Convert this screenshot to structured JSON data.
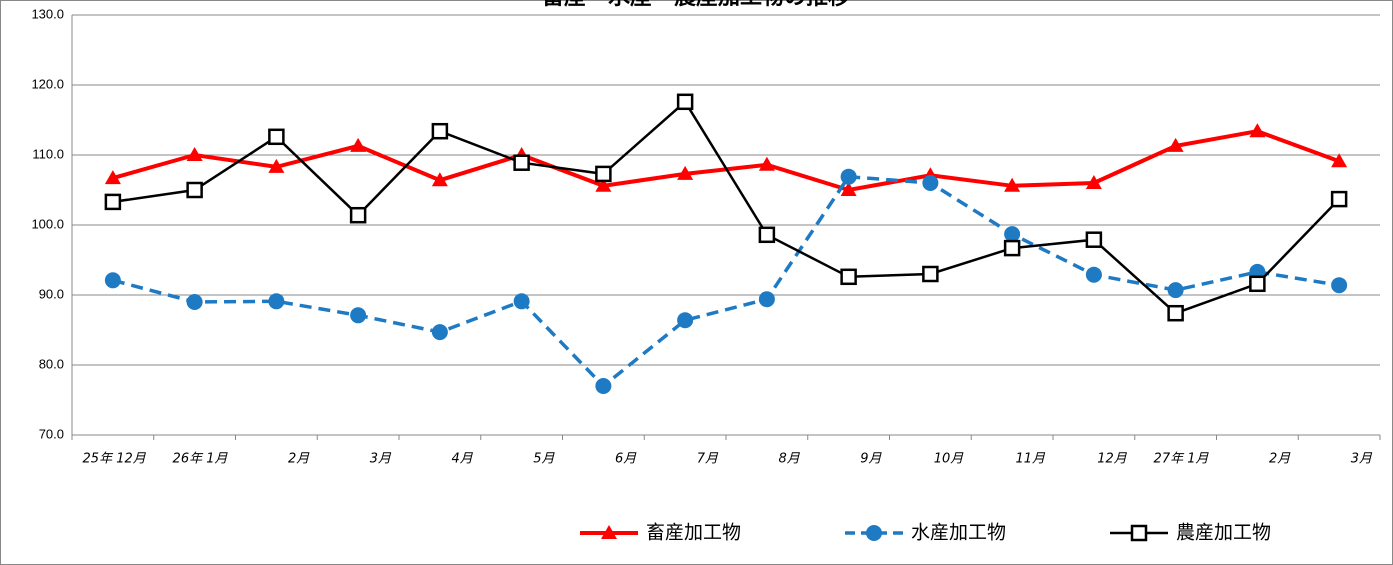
{
  "chart_data": {
    "type": "line",
    "title": "畜産・水産・農産加工物の推移",
    "categories": [
      "25年 12月",
      "26年 1月",
      "2月",
      "3月",
      "4月",
      "5月",
      "6月",
      "7月",
      "8月",
      "9月",
      "10月",
      "11月",
      "12月",
      "27年 1月",
      "2月",
      "3月"
    ],
    "series": [
      {
        "name": "畜産加工物",
        "color": "#ff0000",
        "marker": "triangle",
        "dash": false,
        "values": [
          106.7,
          110.0,
          108.3,
          111.3,
          106.4,
          110.0,
          105.6,
          107.3,
          108.6,
          105.0,
          107.1,
          105.6,
          106.0,
          111.3,
          113.4,
          109.1
        ]
      },
      {
        "name": "水産加工物",
        "color": "#1f7ac4",
        "marker": "circle",
        "dash": true,
        "values": [
          92.1,
          89.0,
          89.1,
          87.1,
          84.7,
          89.1,
          77.0,
          86.4,
          89.4,
          106.9,
          106.0,
          98.7,
          92.9,
          90.7,
          93.3,
          91.4
        ]
      },
      {
        "name": "農産加工物",
        "color": "#000000",
        "marker": "square",
        "dash": false,
        "values": [
          103.3,
          105.0,
          112.6,
          101.4,
          113.4,
          108.9,
          107.3,
          117.6,
          98.6,
          92.6,
          93.0,
          96.7,
          97.9,
          87.4,
          91.6,
          103.7
        ]
      }
    ],
    "ylim": [
      70,
      130
    ],
    "yticks": [
      {
        "value": 70,
        "label": "70.0"
      },
      {
        "value": 80,
        "label": "80.0"
      },
      {
        "value": 90,
        "label": "90.0"
      },
      {
        "value": 100,
        "label": "100.0"
      },
      {
        "value": 110,
        "label": "110.0"
      },
      {
        "value": 120,
        "label": "120.0"
      },
      {
        "value": 130,
        "label": "130.0"
      }
    ],
    "grid": true,
    "legend": "bottom"
  }
}
